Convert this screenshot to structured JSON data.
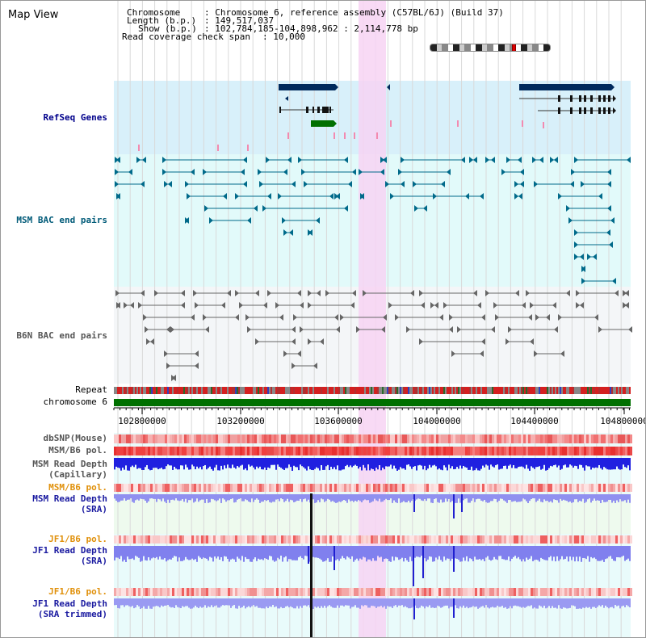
{
  "title": "Map View",
  "info": {
    "chromosome_label": "Chromosome",
    "chromosome_value": "Chromosome 6, reference assembly (C57BL/6J) (Build 37)",
    "length_label": "Length (b.p.)",
    "length_value": "149,517,037",
    "show_label": "Show (b.p.)",
    "show_value": "102,784,185-104,898,962 : 2,114,778 bp",
    "coverage_label": "Read coverage check span",
    "coverage_value": "10,000"
  },
  "tracks": {
    "refseq": "RefSeq Genes",
    "msm_bac": "MSM BAC end pairs",
    "b6n_bac": "B6N BAC end pairs",
    "repeat": "Repeat",
    "chromosome": "chromosome 6",
    "dbsnp": "dbSNP(Mouse)",
    "msm_b6_pol": "MSM/B6 pol.",
    "msm_read_depth_cap_1": "MSM Read Depth",
    "msm_read_depth_cap_2": "(Capillary)",
    "msm_b6_pol_2": "MSM/B6 pol.",
    "msm_read_depth_sra_1": "MSM Read Depth",
    "msm_read_depth_sra_2": "(SRA)",
    "jf1_b6_pol": "JF1/B6 pol.",
    "jf1_read_depth_sra_1": "JF1 Read Depth",
    "jf1_read_depth_sra_2": "(SRA)",
    "jf1_b6_pol_2": "JF1/B6 pol.",
    "jf1_read_depth_trim_1": "JF1 Read Depth",
    "jf1_read_depth_trim_2": "(SRA trimmed)"
  },
  "ruler": {
    "ticks": [
      "102800000",
      "103200000",
      "103600000",
      "104000000",
      "104400000",
      "104800000"
    ]
  },
  "colors": {
    "refseq_bg": "#d8f0fa",
    "msm_bg": "#e2fafa",
    "b6n_bg": "#f4f6f8",
    "highlight": "#f7d3f3",
    "chromosome": "#007000",
    "gene_dark": "#002a5c",
    "gene_green": "#007000",
    "bac_teal": "#006a8a",
    "bac_gray": "#666666"
  }
}
